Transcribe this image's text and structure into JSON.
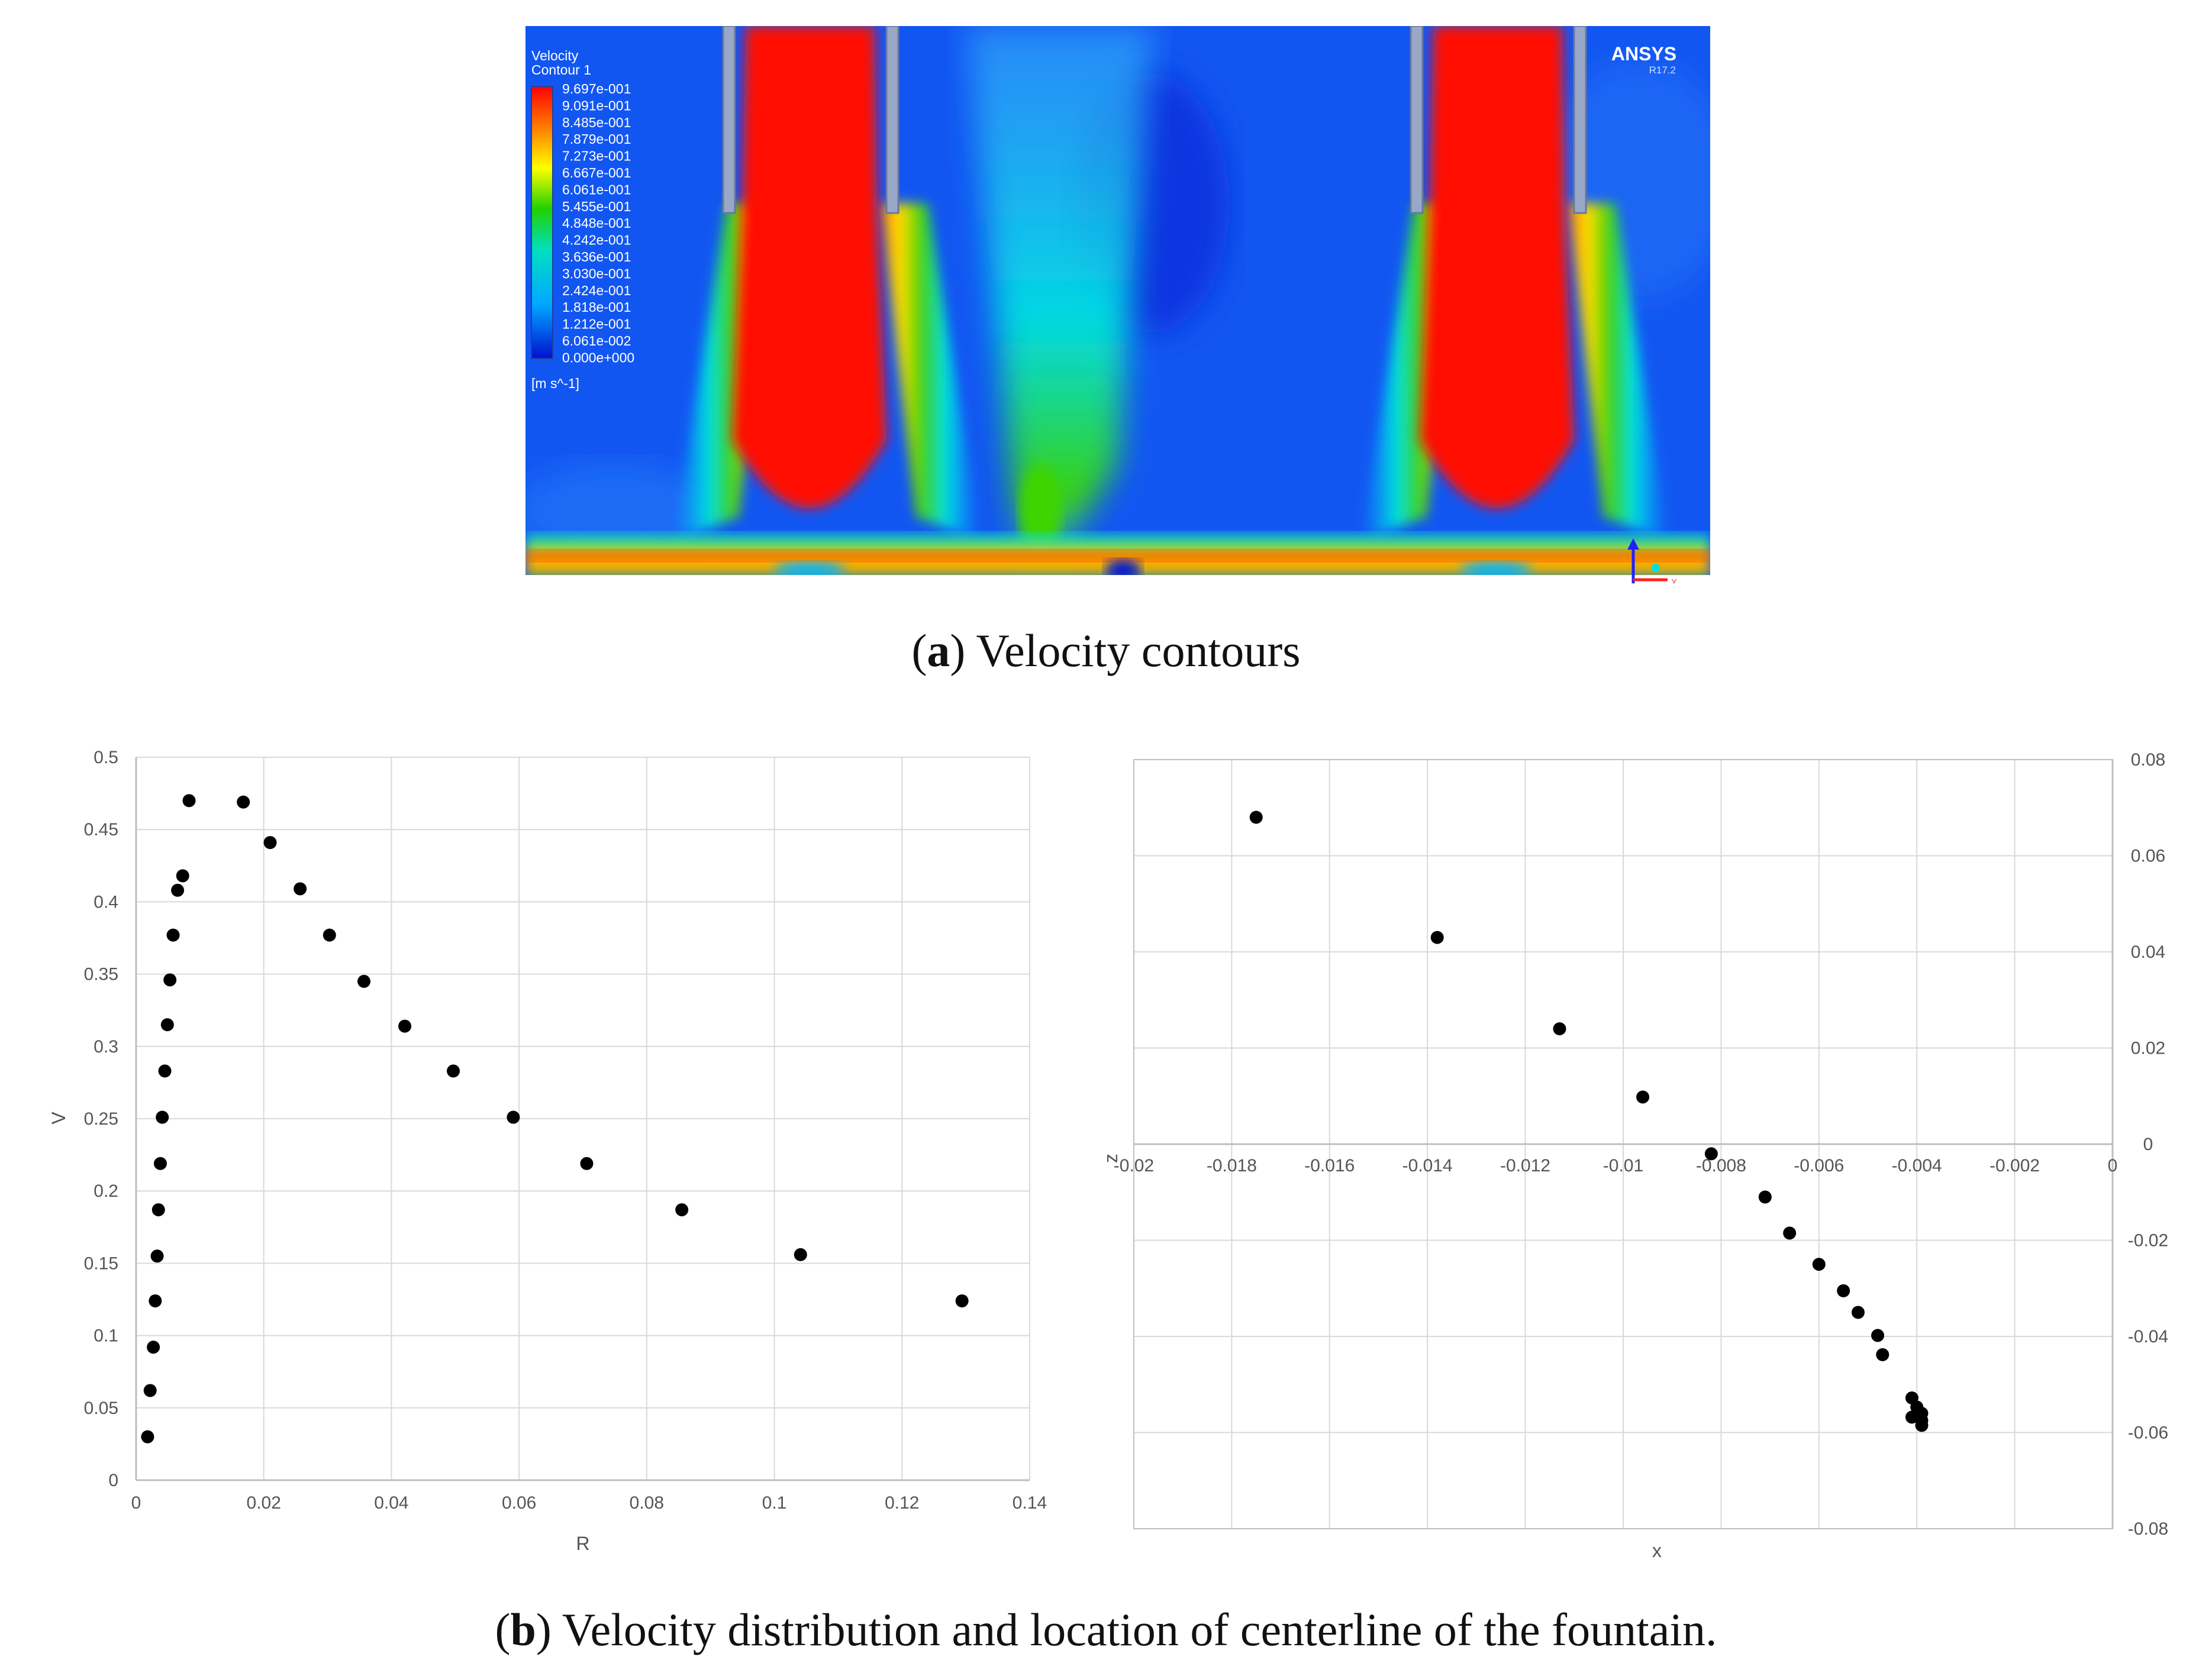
{
  "figure_a": {
    "caption_label": "a",
    "caption_text": ") Velocity contours",
    "caption_open": "(",
    "legend_title_1": "Velocity",
    "legend_title_2": "Contour 1",
    "legend_values": [
      "9.697e-001",
      "9.091e-001",
      "8.485e-001",
      "7.879e-001",
      "7.273e-001",
      "6.667e-001",
      "6.061e-001",
      "5.455e-001",
      "4.848e-001",
      "4.242e-001",
      "3.636e-001",
      "3.030e-001",
      "2.424e-001",
      "1.818e-001",
      "1.212e-001",
      "6.061e-002",
      "0.000e+000"
    ],
    "legend_unit": "[m s^-1]",
    "brand": "ANSYS",
    "version": "R17.2",
    "axis_x_label": "x"
  },
  "figure_b": {
    "caption_open": "(",
    "caption_label": "b",
    "caption_text": ") Velocity distribution and location of centerline of the fountain."
  },
  "chart_data": [
    {
      "type": "scatter",
      "title": "",
      "xlabel": "R",
      "ylabel": "V",
      "xlim": [
        0,
        0.14
      ],
      "ylim": [
        0,
        0.5
      ],
      "xticks": [
        "0",
        "0.02",
        "0.04",
        "0.06",
        "0.08",
        "0.1",
        "0.12",
        "0.14"
      ],
      "yticks": [
        "0",
        "0.05",
        "0.1",
        "0.15",
        "0.2",
        "0.25",
        "0.3",
        "0.35",
        "0.4",
        "0.45",
        "0.5"
      ],
      "grid": true,
      "series": [
        {
          "name": "V",
          "points": [
            [
              0.0018,
              0.03
            ],
            [
              0.0022,
              0.062
            ],
            [
              0.0027,
              0.092
            ],
            [
              0.003,
              0.124
            ],
            [
              0.0033,
              0.155
            ],
            [
              0.0035,
              0.187
            ],
            [
              0.0038,
              0.219
            ],
            [
              0.0041,
              0.251
            ],
            [
              0.0045,
              0.283
            ],
            [
              0.0049,
              0.315
            ],
            [
              0.0053,
              0.346
            ],
            [
              0.0058,
              0.377
            ],
            [
              0.0065,
              0.408
            ],
            [
              0.0073,
              0.418
            ],
            [
              0.0083,
              0.47
            ],
            [
              0.0168,
              0.469
            ],
            [
              0.021,
              0.441
            ],
            [
              0.0257,
              0.409
            ],
            [
              0.0303,
              0.377
            ],
            [
              0.0357,
              0.345
            ],
            [
              0.0421,
              0.314
            ],
            [
              0.0497,
              0.283
            ],
            [
              0.0591,
              0.251
            ],
            [
              0.0706,
              0.219
            ],
            [
              0.0855,
              0.187
            ],
            [
              0.1041,
              0.156
            ],
            [
              0.1294,
              0.124
            ]
          ]
        }
      ]
    },
    {
      "type": "scatter",
      "title": "",
      "xlabel": "x",
      "ylabel": "z",
      "xlim": [
        -0.02,
        0
      ],
      "ylim": [
        -0.08,
        0.08
      ],
      "xticks": [
        "-0.02",
        "-0.018",
        "-0.016",
        "-0.014",
        "-0.012",
        "-0.01",
        "-0.008",
        "-0.006",
        "-0.004",
        "-0.002",
        "0"
      ],
      "yticks": [
        "-0.08",
        "-0.06",
        "-0.04",
        "-0.02",
        "0",
        "0.02",
        "0.04",
        "0.06",
        "0.08"
      ],
      "grid": true,
      "y_axis_side": "right",
      "series": [
        {
          "name": "centerline",
          "points": [
            [
              -0.0175,
              0.068
            ],
            [
              -0.0138,
              0.043
            ],
            [
              -0.0113,
              0.024
            ],
            [
              -0.0096,
              0.0098
            ],
            [
              -0.0082,
              -0.002
            ],
            [
              -0.0071,
              -0.011
            ],
            [
              -0.0066,
              -0.0185
            ],
            [
              -0.006,
              -0.025
            ],
            [
              -0.0055,
              -0.0305
            ],
            [
              -0.0052,
              -0.035
            ],
            [
              -0.0048,
              -0.0398
            ],
            [
              -0.0047,
              -0.0438
            ],
            [
              -0.0041,
              -0.0528
            ],
            [
              -0.004,
              -0.0547
            ],
            [
              -0.0039,
              -0.056
            ],
            [
              -0.0041,
              -0.0568
            ],
            [
              -0.0039,
              -0.0575
            ],
            [
              -0.0039,
              -0.0585
            ]
          ]
        }
      ]
    }
  ]
}
